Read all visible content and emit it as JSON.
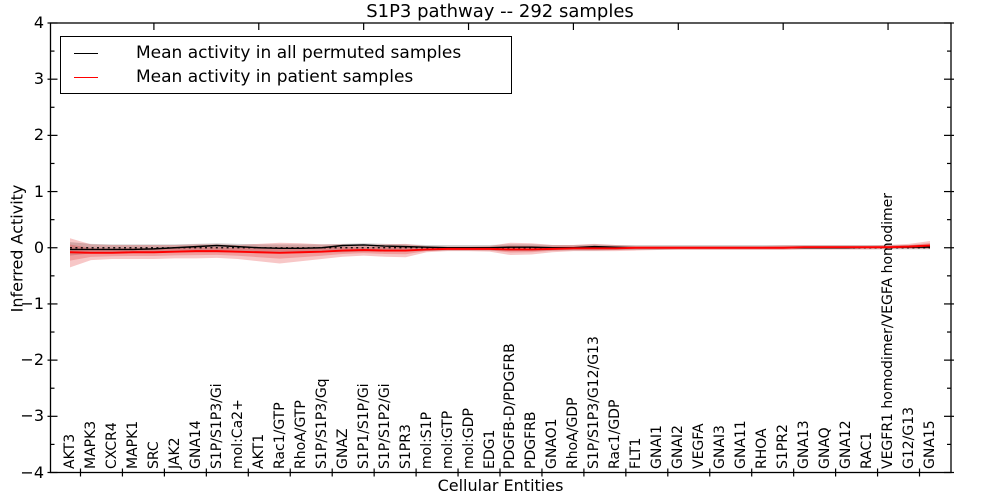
{
  "title": "S1P3 pathway -- 292 samples",
  "axes": {
    "xlabel": "Cellular Entities",
    "ylabel": "Inferred Activity",
    "ytick_labels": [
      "4",
      "3",
      "2",
      "1",
      "0",
      "−1",
      "−2",
      "−3",
      "−4"
    ],
    "ytick_values": [
      4,
      3,
      2,
      1,
      0,
      -1,
      -2,
      -3,
      -4
    ]
  },
  "legend": {
    "items": [
      {
        "label": "Mean activity in all permuted samples",
        "color": "#000000"
      },
      {
        "label": "Mean activity in patient samples",
        "color": "#ff0000"
      }
    ]
  },
  "chart_data": {
    "type": "line",
    "title": "S1P3 pathway -- 292 samples",
    "xlabel": "Cellular Entities",
    "ylabel": "Inferred Activity",
    "ylim": [
      -4,
      4
    ],
    "grid": false,
    "legend_position": "upper left",
    "zero_line": {
      "style": "dotted",
      "color": "#000000",
      "y": 0
    },
    "categories": [
      "AKT3",
      "MAPK3",
      "CXCR4",
      "MAPK1",
      "SRC",
      "JAK2",
      "GNA14",
      "S1P/S1P3/Gi",
      "mol:Ca2+",
      "AKT1",
      "Rac1/GTP",
      "RhoA/GTP",
      "S1P/S1P3/Gq",
      "GNAZ",
      "S1P1/S1P/Gi",
      "S1P/S1P2/Gi",
      "S1PR3",
      "mol:S1P",
      "mol:GTP",
      "mol:GDP",
      "EDG1",
      "PDGFB-D/PDGFRB",
      "PDGFRB",
      "GNAO1",
      "RhoA/GDP",
      "S1P/S1P3/G12/G13",
      "Rac1/GDP",
      "FLT1",
      "GNAI1",
      "GNAI2",
      "VEGFA",
      "GNAI3",
      "GNA11",
      "RHOA",
      "S1PR2",
      "GNA13",
      "GNAQ",
      "GNA12",
      "RAC1",
      "VEGFR1 homodimer/VEGFA homodimer",
      "G12/G13",
      "GNA15"
    ],
    "series": [
      {
        "name": "Mean activity in all permuted samples",
        "color": "#000000",
        "values": [
          -0.03,
          -0.03,
          -0.03,
          -0.03,
          -0.02,
          0.0,
          0.02,
          0.04,
          0.02,
          0.0,
          -0.01,
          -0.01,
          0.0,
          0.04,
          0.05,
          0.03,
          0.02,
          0.01,
          0.0,
          0.0,
          0.0,
          0.01,
          0.01,
          0.0,
          0.0,
          0.02,
          0.01,
          0.0,
          0.0,
          0.0,
          0.0,
          0.0,
          0.0,
          0.0,
          0.0,
          0.0,
          0.0,
          0.0,
          0.01,
          0.01,
          0.01,
          0.01
        ]
      },
      {
        "name": "Mean activity in patient samples",
        "color": "#ff0000",
        "values": [
          -0.08,
          -0.09,
          -0.09,
          -0.08,
          -0.08,
          -0.07,
          -0.06,
          -0.06,
          -0.07,
          -0.08,
          -0.09,
          -0.08,
          -0.07,
          -0.05,
          -0.04,
          -0.05,
          -0.05,
          -0.03,
          -0.02,
          -0.02,
          -0.02,
          -0.03,
          -0.03,
          -0.02,
          -0.01,
          -0.01,
          -0.01,
          0.0,
          0.0,
          0.0,
          0.0,
          0.0,
          0.0,
          0.0,
          0.0,
          0.01,
          0.01,
          0.01,
          0.01,
          0.01,
          0.02,
          0.04
        ]
      }
    ],
    "bands": [
      {
        "name": "permuted-std-band",
        "color": "rgba(90,90,90,0.28)",
        "upper": [
          0.1,
          0.07,
          0.06,
          0.06,
          0.06,
          0.06,
          0.07,
          0.08,
          0.07,
          0.06,
          0.06,
          0.06,
          0.06,
          0.07,
          0.08,
          0.07,
          0.06,
          0.05,
          0.05,
          0.05,
          0.05,
          0.06,
          0.06,
          0.05,
          0.05,
          0.06,
          0.05,
          0.05,
          0.05,
          0.05,
          0.05,
          0.05,
          0.05,
          0.05,
          0.05,
          0.05,
          0.05,
          0.05,
          0.05,
          0.05,
          0.05,
          0.06
        ],
        "lower": [
          -0.14,
          -0.1,
          -0.09,
          -0.09,
          -0.09,
          -0.08,
          -0.08,
          -0.08,
          -0.09,
          -0.09,
          -0.09,
          -0.09,
          -0.08,
          -0.08,
          -0.07,
          -0.07,
          -0.07,
          -0.06,
          -0.05,
          -0.05,
          -0.05,
          -0.06,
          -0.06,
          -0.05,
          -0.05,
          -0.05,
          -0.04,
          -0.04,
          -0.04,
          -0.03,
          -0.03,
          -0.03,
          -0.03,
          -0.03,
          -0.03,
          -0.03,
          -0.03,
          -0.03,
          -0.03,
          -0.03,
          -0.03,
          -0.03
        ]
      },
      {
        "name": "patient-std-band",
        "color": "rgba(225,30,30,0.25)",
        "upper": [
          0.17,
          0.06,
          0.05,
          0.05,
          0.05,
          0.05,
          0.06,
          0.06,
          0.05,
          0.07,
          0.09,
          0.08,
          0.06,
          0.06,
          0.05,
          0.06,
          0.07,
          0.03,
          0.02,
          0.02,
          0.03,
          0.09,
          0.08,
          0.05,
          0.05,
          0.07,
          0.05,
          0.03,
          0.03,
          0.03,
          0.03,
          0.03,
          0.03,
          0.03,
          0.04,
          0.04,
          0.04,
          0.04,
          0.04,
          0.05,
          0.07,
          0.12
        ],
        "lower": [
          -0.35,
          -0.22,
          -0.2,
          -0.2,
          -0.2,
          -0.19,
          -0.19,
          -0.18,
          -0.2,
          -0.24,
          -0.28,
          -0.24,
          -0.2,
          -0.16,
          -0.14,
          -0.16,
          -0.17,
          -0.08,
          -0.06,
          -0.06,
          -0.07,
          -0.13,
          -0.12,
          -0.08,
          -0.06,
          -0.06,
          -0.06,
          -0.05,
          -0.04,
          -0.04,
          -0.04,
          -0.04,
          -0.04,
          -0.04,
          -0.04,
          -0.03,
          -0.03,
          -0.03,
          -0.03,
          -0.02,
          -0.02,
          -0.02
        ],
        "inner_band_scale": 0.55
      }
    ]
  }
}
